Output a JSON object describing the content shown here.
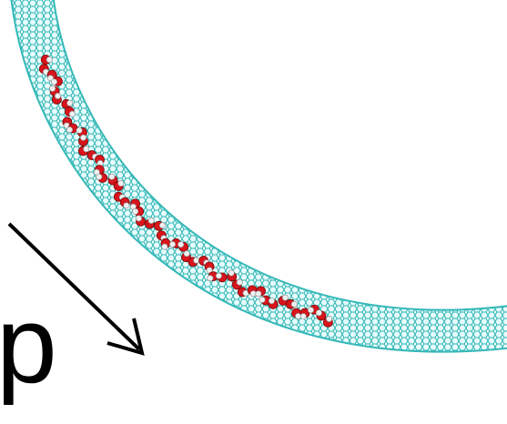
{
  "label": "p"
}
